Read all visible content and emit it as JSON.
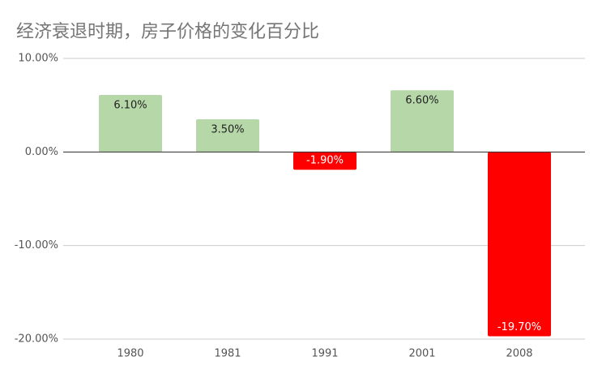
{
  "chart_data": {
    "type": "bar",
    "title": "经济衰退时期，房子价格的变化百分比",
    "categories": [
      "1980",
      "1981",
      "1991",
      "2001",
      "2008"
    ],
    "values": [
      6.1,
      3.5,
      -1.9,
      6.6,
      -19.7
    ],
    "value_labels": [
      "6.10%",
      "3.50%",
      "-1.90%",
      "6.60%",
      "-19.70%"
    ],
    "colors": [
      "#b6d7a8",
      "#b6d7a8",
      "#ff0000",
      "#b6d7a8",
      "#ff0000"
    ],
    "ylim": [
      -20,
      10
    ],
    "yticks": [
      {
        "value": -20,
        "label": "-20.00%"
      },
      {
        "value": -10,
        "label": "-10.00%"
      },
      {
        "value": 0,
        "label": "0.00%"
      },
      {
        "value": 10,
        "label": "10.00%"
      }
    ],
    "grid": true
  }
}
